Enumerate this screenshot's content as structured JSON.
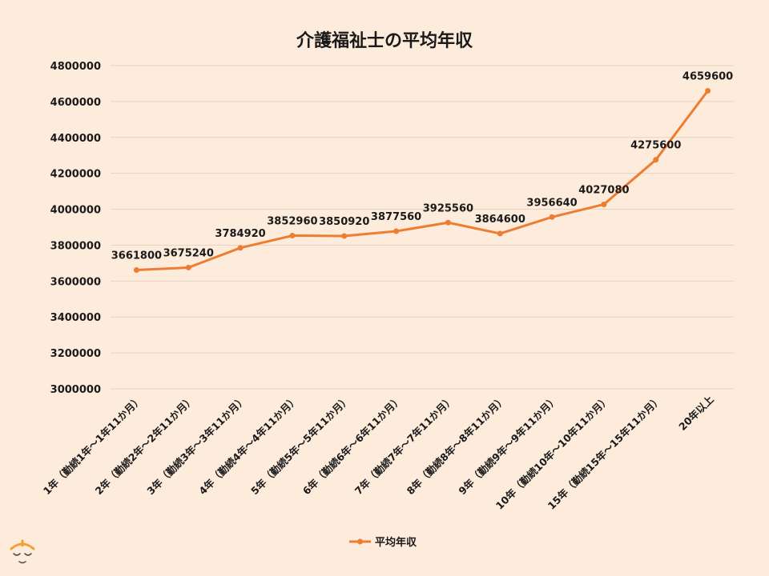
{
  "colors": {
    "series": "#ed7d31",
    "background": "#fdebdc",
    "grid": "#e8d3c3",
    "text": "#1a1a1a"
  },
  "chart_data": {
    "type": "line",
    "title": "介護福祉士の平均年収",
    "xlabel": "",
    "ylabel": "",
    "ylim": [
      3000000,
      4800000
    ],
    "yticks": [
      4800000,
      4600000,
      4400000,
      4200000,
      4000000,
      3800000,
      3600000,
      3400000,
      3200000,
      3000000
    ],
    "grid": true,
    "legend_position": "bottom",
    "categories": [
      "1年（勤続1年～1年11か月）",
      "2年（勤続2年～2年11か月）",
      "3年（勤続3年～3年11か月）",
      "4年（勤続4年～4年11か月）",
      "5年（勤続5年～5年11か月）",
      "6年（勤続6年～6年11か月）",
      "7年（勤続7年～7年11か月）",
      "8年（勤続8年～8年11か月）",
      "9年（勤続9年～9年11か月）",
      "10年（勤続10年～10年11か月）",
      "15年（勤続15年～15年11か月）",
      "20年以上"
    ],
    "series": [
      {
        "name": "平均年収",
        "values": [
          3661800,
          3675240,
          3784920,
          3852960,
          3850920,
          3877560,
          3925560,
          3864600,
          3956640,
          4027080,
          4275600,
          4659600
        ]
      }
    ]
  },
  "logo_icon": "face-mascot-icon"
}
